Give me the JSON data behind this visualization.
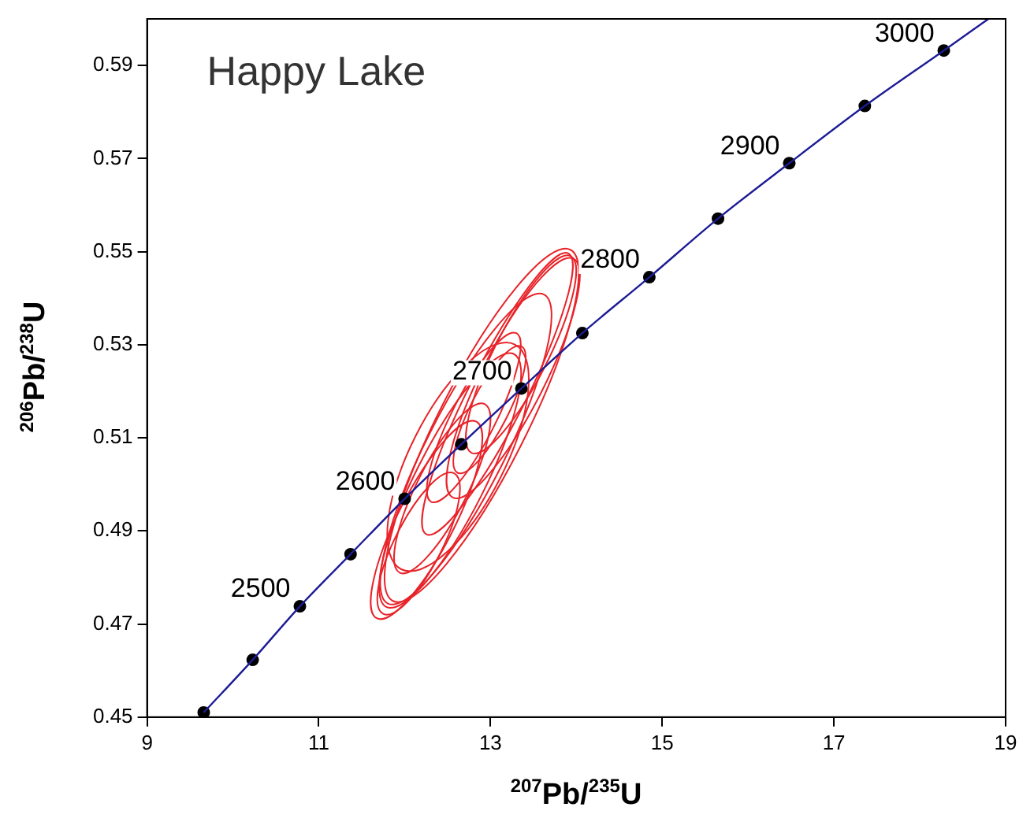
{
  "chart_data": {
    "type": "line",
    "title": "Happy Lake",
    "xlabel": "$^{207}$Pb/$^{235}$U",
    "ylabel": "$^{206}$Pb/$^{238}$U",
    "xlim": [
      9,
      19
    ],
    "xticks": [
      9,
      11,
      13,
      15,
      17,
      19
    ],
    "ylim": [
      0.45,
      0.6
    ],
    "yticks": [
      0.45,
      0.47,
      0.49,
      0.51,
      0.53,
      0.55,
      0.57,
      0.59
    ],
    "grid": false,
    "legend": false,
    "series": [
      {
        "type": "line",
        "color": "#1c1c96",
        "marker": "none",
        "x": [
          9.66,
          10.23,
          10.78,
          11.37,
          12.0,
          12.66,
          13.36,
          14.07,
          14.85,
          15.65,
          16.48,
          17.36,
          18.28,
          18.8
        ],
        "values": [
          0.451,
          0.4623,
          0.4738,
          0.485,
          0.4969,
          0.5086,
          0.5206,
          0.5325,
          0.5445,
          0.5571,
          0.569,
          0.5813,
          0.5932,
          0.6
        ]
      },
      {
        "type": "scatter",
        "color": "#000000",
        "marker": "circle",
        "x": [
          9.66,
          10.23,
          10.78,
          11.37,
          12.0,
          12.66,
          13.36,
          14.07,
          14.85,
          15.65,
          16.48,
          17.36,
          18.28
        ],
        "values": [
          0.451,
          0.4623,
          0.4738,
          0.485,
          0.4969,
          0.5086,
          0.5206,
          0.5325,
          0.5445,
          0.5571,
          0.569,
          0.5813,
          0.5932
        ]
      }
    ],
    "annotations": [
      {
        "text": "2500",
        "x": 10.78,
        "y": 0.4738
      },
      {
        "text": "2600",
        "x": 12.0,
        "y": 0.4969
      },
      {
        "text": "2700",
        "x": 13.36,
        "y": 0.5206
      },
      {
        "text": "2800",
        "x": 14.85,
        "y": 0.5445
      },
      {
        "text": "2900",
        "x": 16.48,
        "y": 0.569
      },
      {
        "text": "3000",
        "x": 18.28,
        "y": 0.5932
      }
    ]
  }
}
